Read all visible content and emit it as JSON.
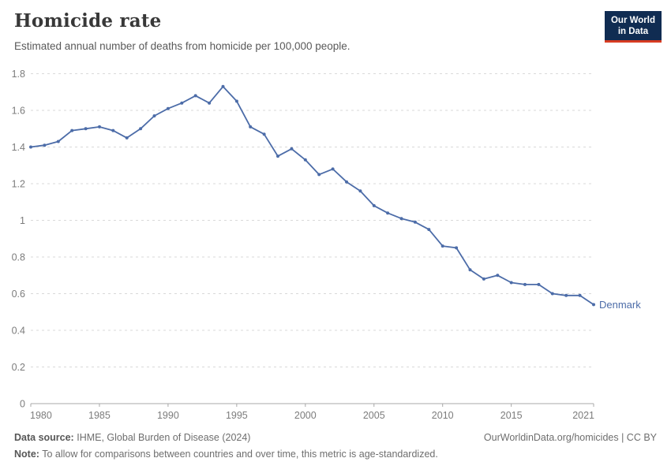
{
  "header": {
    "title": "Homicide rate",
    "subtitle": "Estimated annual number of deaths from homicide per 100,000 people."
  },
  "logo": {
    "line1": "Our World",
    "line2": "in Data",
    "bg_color": "#102c52",
    "accent_color": "#d73c22",
    "text_color": "#ffffff"
  },
  "chart_data": {
    "type": "line",
    "title": "Homicide rate",
    "xlabel": "",
    "ylabel": "",
    "ylim": [
      0,
      1.8
    ],
    "yticks": [
      0,
      0.2,
      0.4,
      0.6,
      0.8,
      1,
      1.2,
      1.4,
      1.6,
      1.8
    ],
    "xticks": [
      1980,
      1985,
      1990,
      1995,
      2000,
      2005,
      2010,
      2015,
      2021
    ],
    "grid": "horizontal-dashed",
    "legend_position": "end-of-line-label",
    "x": [
      1980,
      1981,
      1982,
      1983,
      1984,
      1985,
      1986,
      1987,
      1988,
      1989,
      1990,
      1991,
      1992,
      1993,
      1994,
      1995,
      1996,
      1997,
      1998,
      1999,
      2000,
      2001,
      2002,
      2003,
      2004,
      2005,
      2006,
      2007,
      2008,
      2009,
      2010,
      2011,
      2012,
      2013,
      2014,
      2015,
      2016,
      2017,
      2018,
      2019,
      2020,
      2021
    ],
    "series": [
      {
        "name": "Denmark",
        "color": "#4c6ca8",
        "values": [
          1.4,
          1.41,
          1.43,
          1.49,
          1.5,
          1.51,
          1.49,
          1.45,
          1.5,
          1.57,
          1.61,
          1.64,
          1.68,
          1.64,
          1.73,
          1.65,
          1.51,
          1.47,
          1.35,
          1.39,
          1.33,
          1.25,
          1.28,
          1.21,
          1.16,
          1.08,
          1.04,
          1.01,
          0.99,
          0.95,
          0.86,
          0.85,
          0.73,
          0.68,
          0.7,
          0.66,
          0.65,
          0.65,
          0.6,
          0.59,
          0.59,
          0.54
        ]
      }
    ]
  },
  "footer": {
    "source_label": "Data source:",
    "source_text": "IHME, Global Burden of Disease (2024)",
    "note_label": "Note:",
    "note_text": "To allow for comparisons between countries and over time, this metric is age-standardized.",
    "right_text": "OurWorldinData.org/homicides | CC BY"
  },
  "colors": {
    "grid": "#d9d9d9",
    "axis": "#a8a8a8",
    "tick_label": "#7c7c7c",
    "line": "#4c6ca8"
  }
}
